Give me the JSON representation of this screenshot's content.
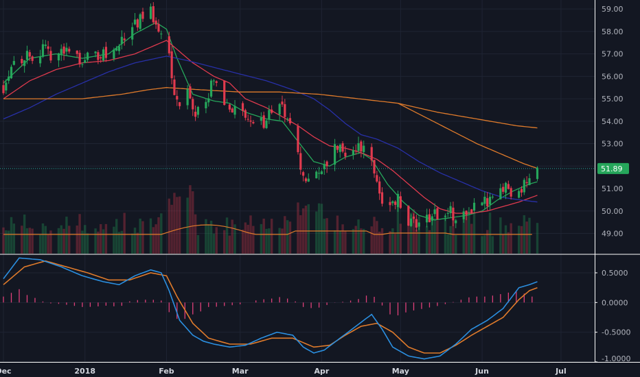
{
  "chart_data": [
    {
      "type": "candlestick",
      "panel": "price",
      "x_ticks": [
        {
          "label": "Dec",
          "day": 0
        },
        {
          "label": "2018",
          "day": 31
        },
        {
          "label": "Feb",
          "day": 62
        },
        {
          "label": "Mar",
          "day": 90
        },
        {
          "label": "Apr",
          "day": 121
        },
        {
          "label": "May",
          "day": 151
        },
        {
          "label": "Jun",
          "day": 182
        },
        {
          "label": "Jul",
          "day": 212
        }
      ],
      "y_ticks": [
        "59.00",
        "58.00",
        "57.00",
        "56.00",
        "55.00",
        "54.00",
        "53.00",
        "52.00",
        "51.00",
        "50.00",
        "49.00"
      ],
      "ylim": [
        48.1,
        59.4
      ],
      "last_price": "51.89",
      "close_key_points": [
        [
          0,
          55.6
        ],
        [
          3,
          56.6
        ],
        [
          8,
          56.9
        ],
        [
          14,
          57.1
        ],
        [
          20,
          57.0
        ],
        [
          26,
          57.1
        ],
        [
          30,
          56.8
        ],
        [
          36,
          56.9
        ],
        [
          42,
          57.2
        ],
        [
          46,
          57.6
        ],
        [
          48,
          58.2
        ],
        [
          51,
          58.5
        ],
        [
          56,
          58.8
        ],
        [
          58,
          58.5
        ],
        [
          61,
          57.9
        ],
        [
          63,
          57.0
        ],
        [
          65,
          55.0
        ],
        [
          67,
          54.4
        ],
        [
          70,
          55.4
        ],
        [
          72,
          54.2
        ],
        [
          75,
          54.6
        ],
        [
          78,
          55.2
        ],
        [
          80,
          56.0
        ],
        [
          83,
          54.9
        ],
        [
          86,
          54.6
        ],
        [
          90,
          54.4
        ],
        [
          93,
          54.0
        ],
        [
          97,
          53.9
        ],
        [
          101,
          54.2
        ],
        [
          104,
          54.8
        ],
        [
          108,
          54.2
        ],
        [
          110,
          53.2
        ],
        [
          113,
          52.0
        ],
        [
          116,
          51.5
        ],
        [
          118,
          51.3
        ],
        [
          120,
          51.7
        ],
        [
          122,
          51.8
        ],
        [
          124,
          52.5
        ],
        [
          127,
          52.8
        ],
        [
          130,
          52.7
        ],
        [
          134,
          52.6
        ],
        [
          137,
          53.2
        ],
        [
          139,
          52.5
        ],
        [
          141,
          51.5
        ],
        [
          143,
          50.8
        ],
        [
          146,
          50.2
        ],
        [
          150,
          50.5
        ],
        [
          153,
          49.6
        ],
        [
          156,
          49.4
        ],
        [
          160,
          49.7
        ],
        [
          163,
          49.7
        ],
        [
          167,
          49.8
        ],
        [
          170,
          49.9
        ],
        [
          173,
          49.8
        ],
        [
          177,
          49.9
        ],
        [
          180,
          50.3
        ],
        [
          183,
          50.3
        ],
        [
          186,
          50.9
        ],
        [
          189,
          51.3
        ],
        [
          192,
          51.0
        ],
        [
          195,
          50.8
        ],
        [
          198,
          51.2
        ],
        [
          201,
          51.6
        ],
        [
          203,
          51.89
        ]
      ],
      "moving_averages": [
        {
          "color": "#26a65b",
          "points": [
            [
              0,
              55.7
            ],
            [
              10,
              56.8
            ],
            [
              20,
              57.0
            ],
            [
              30,
              56.8
            ],
            [
              40,
              57.0
            ],
            [
              50,
              57.9
            ],
            [
              58,
              58.4
            ],
            [
              62,
              58.1
            ],
            [
              66,
              56.8
            ],
            [
              72,
              55.2
            ],
            [
              80,
              54.9
            ],
            [
              86,
              54.8
            ],
            [
              92,
              54.4
            ],
            [
              100,
              54.1
            ],
            [
              106,
              54.0
            ],
            [
              112,
              53.1
            ],
            [
              118,
              52.2
            ],
            [
              124,
              52.0
            ],
            [
              130,
              52.4
            ],
            [
              136,
              52.6
            ],
            [
              140,
              52.3
            ],
            [
              146,
              51.2
            ],
            [
              152,
              50.4
            ],
            [
              158,
              49.8
            ],
            [
              164,
              49.6
            ],
            [
              170,
              49.7
            ],
            [
              176,
              49.8
            ],
            [
              182,
              50.0
            ],
            [
              188,
              50.5
            ],
            [
              194,
              50.9
            ],
            [
              200,
              51.2
            ],
            [
              203,
              51.3
            ]
          ]
        },
        {
          "color": "#e03a4e",
          "points": [
            [
              0,
              55.0
            ],
            [
              10,
              55.8
            ],
            [
              20,
              56.3
            ],
            [
              30,
              56.6
            ],
            [
              40,
              56.7
            ],
            [
              50,
              57.0
            ],
            [
              58,
              57.4
            ],
            [
              62,
              57.6
            ],
            [
              66,
              57.2
            ],
            [
              72,
              56.6
            ],
            [
              80,
              56.0
            ],
            [
              86,
              55.7
            ],
            [
              92,
              55.0
            ],
            [
              100,
              54.6
            ],
            [
              106,
              54.2
            ],
            [
              112,
              53.8
            ],
            [
              118,
              53.3
            ],
            [
              124,
              52.9
            ],
            [
              130,
              52.8
            ],
            [
              136,
              52.6
            ],
            [
              142,
              52.3
            ],
            [
              148,
              51.8
            ],
            [
              154,
              51.2
            ],
            [
              160,
              50.6
            ],
            [
              166,
              50.1
            ],
            [
              172,
              49.9
            ],
            [
              178,
              49.9
            ],
            [
              184,
              50.0
            ],
            [
              190,
              50.2
            ],
            [
              196,
              50.4
            ],
            [
              203,
              50.7
            ]
          ]
        },
        {
          "color": "#2830a8",
          "points": [
            [
              0,
              54.1
            ],
            [
              10,
              54.6
            ],
            [
              20,
              55.2
            ],
            [
              30,
              55.7
            ],
            [
              40,
              56.2
            ],
            [
              50,
              56.6
            ],
            [
              58,
              56.8
            ],
            [
              62,
              56.9
            ],
            [
              70,
              56.7
            ],
            [
              80,
              56.4
            ],
            [
              90,
              56.1
            ],
            [
              100,
              55.8
            ],
            [
              110,
              55.4
            ],
            [
              118,
              55.0
            ],
            [
              124,
              54.5
            ],
            [
              130,
              53.9
            ],
            [
              136,
              53.4
            ],
            [
              142,
              53.2
            ],
            [
              150,
              52.8
            ],
            [
              158,
              52.2
            ],
            [
              166,
              51.7
            ],
            [
              174,
              51.3
            ],
            [
              182,
              50.9
            ],
            [
              190,
              50.6
            ],
            [
              196,
              50.5
            ],
            [
              203,
              50.4
            ]
          ]
        },
        {
          "color": "#e07b2b",
          "points": [
            [
              0,
              55.0
            ],
            [
              15,
              55.0
            ],
            [
              30,
              55.0
            ],
            [
              45,
              55.2
            ],
            [
              55,
              55.4
            ],
            [
              62,
              55.5
            ],
            [
              75,
              55.4
            ],
            [
              90,
              55.3
            ],
            [
              105,
              55.3
            ],
            [
              120,
              55.2
            ],
            [
              135,
              55.0
            ],
            [
              150,
              54.8
            ],
            [
              165,
              54.4
            ],
            [
              180,
              54.1
            ],
            [
              195,
              53.8
            ],
            [
              203,
              53.7
            ]
          ]
        },
        {
          "color": "#e07b2b",
          "points": [
            [
              150,
              54.8
            ],
            [
              160,
              54.2
            ],
            [
              170,
              53.6
            ],
            [
              180,
              53.0
            ],
            [
              190,
              52.5
            ],
            [
              198,
              52.1
            ],
            [
              203,
              51.9
            ]
          ]
        }
      ]
    },
    {
      "type": "bar",
      "panel": "volume",
      "volume_color": "#e07b2b"
    },
    {
      "type": "line",
      "panel": "macd",
      "y_ticks": [
        "0.5000",
        "0.0000",
        "-0.5000",
        "-1.0000"
      ],
      "ylim": [
        -1.0,
        0.8
      ],
      "macd_key_points": [
        [
          0,
          0.4
        ],
        [
          6,
          0.75
        ],
        [
          14,
          0.72
        ],
        [
          22,
          0.6
        ],
        [
          30,
          0.45
        ],
        [
          38,
          0.35
        ],
        [
          44,
          0.3
        ],
        [
          50,
          0.45
        ],
        [
          56,
          0.55
        ],
        [
          60,
          0.5
        ],
        [
          63,
          0.2
        ],
        [
          67,
          -0.3
        ],
        [
          72,
          -0.55
        ],
        [
          76,
          -0.65
        ],
        [
          80,
          -0.7
        ],
        [
          86,
          -0.75
        ],
        [
          92,
          -0.72
        ],
        [
          98,
          -0.6
        ],
        [
          104,
          -0.5
        ],
        [
          110,
          -0.55
        ],
        [
          114,
          -0.75
        ],
        [
          118,
          -0.85
        ],
        [
          122,
          -0.8
        ],
        [
          128,
          -0.6
        ],
        [
          134,
          -0.4
        ],
        [
          140,
          -0.2
        ],
        [
          144,
          -0.45
        ],
        [
          148,
          -0.75
        ],
        [
          154,
          -0.9
        ],
        [
          160,
          -0.95
        ],
        [
          166,
          -0.9
        ],
        [
          172,
          -0.7
        ],
        [
          178,
          -0.45
        ],
        [
          184,
          -0.3
        ],
        [
          190,
          -0.1
        ],
        [
          196,
          0.25
        ],
        [
          200,
          0.3
        ],
        [
          203,
          0.35
        ]
      ],
      "signal_key_points": [
        [
          0,
          0.3
        ],
        [
          8,
          0.6
        ],
        [
          16,
          0.7
        ],
        [
          24,
          0.6
        ],
        [
          32,
          0.5
        ],
        [
          40,
          0.38
        ],
        [
          48,
          0.38
        ],
        [
          56,
          0.5
        ],
        [
          62,
          0.45
        ],
        [
          66,
          0.1
        ],
        [
          72,
          -0.35
        ],
        [
          78,
          -0.6
        ],
        [
          86,
          -0.7
        ],
        [
          94,
          -0.7
        ],
        [
          102,
          -0.6
        ],
        [
          110,
          -0.6
        ],
        [
          118,
          -0.75
        ],
        [
          124,
          -0.72
        ],
        [
          130,
          -0.55
        ],
        [
          136,
          -0.4
        ],
        [
          142,
          -0.35
        ],
        [
          148,
          -0.5
        ],
        [
          154,
          -0.75
        ],
        [
          160,
          -0.85
        ],
        [
          166,
          -0.85
        ],
        [
          172,
          -0.72
        ],
        [
          178,
          -0.55
        ],
        [
          184,
          -0.4
        ],
        [
          190,
          -0.25
        ],
        [
          196,
          0.05
        ],
        [
          200,
          0.2
        ],
        [
          203,
          0.25
        ]
      ]
    }
  ]
}
